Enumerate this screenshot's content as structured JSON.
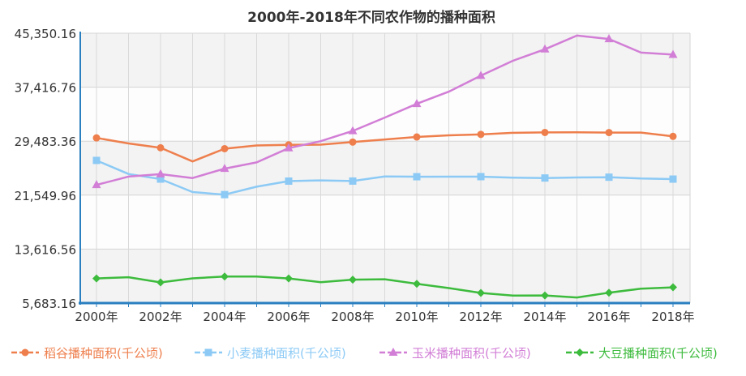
{
  "chart_data": {
    "type": "line",
    "title": "2000年-2018年不同农作物的播种面积",
    "x": [
      2000,
      2001,
      2002,
      2003,
      2004,
      2005,
      2006,
      2007,
      2008,
      2009,
      2010,
      2011,
      2012,
      2013,
      2014,
      2015,
      2016,
      2017,
      2018
    ],
    "x_tick_labels": [
      "2000年",
      "2002年",
      "2004年",
      "2006年",
      "2008年",
      "2010年",
      "2012年",
      "2014年",
      "2016年",
      "2018年"
    ],
    "y_tick_labels": [
      "5,683.16",
      "13,616.56",
      "21,549.96",
      "29,483.36",
      "37,416.76",
      "45,350.16"
    ],
    "ylim": [
      5683.16,
      45350.16
    ],
    "grid": true,
    "legend_position": "bottom",
    "series": [
      {
        "name": "稻谷播种面积(千公顷)",
        "color": "#ee7f4d",
        "marker": "circle",
        "values": [
          29962,
          29144,
          28509,
          26508,
          28379,
          28847,
          28938,
          28973,
          29350,
          29733,
          30097,
          30338,
          30476,
          30710,
          30765,
          30784,
          30746,
          30747,
          30189
        ]
      },
      {
        "name": "小麦播种面积(千公顷)",
        "color": "#8ccaf5",
        "marker": "square",
        "values": [
          26653,
          24664,
          23908,
          21997,
          21626,
          22793,
          23613,
          23721,
          23617,
          24291,
          24257,
          24270,
          24268,
          24117,
          24069,
          24141,
          24187,
          23988,
          23905
        ]
      },
      {
        "name": "玉米播种面积(千公顷)",
        "color": "#d27ed6",
        "marker": "triangle",
        "values": [
          23056,
          24282,
          24634,
          24068,
          25446,
          26358,
          28463,
          29478,
          30981,
          32948,
          34977,
          36767,
          39109,
          41299,
          42997,
          45000,
          44500,
          42500,
          42200
        ]
      },
      {
        "name": "大豆播种面积(千公顷)",
        "color": "#3dbb3d",
        "marker": "diamond",
        "values": [
          9307,
          9482,
          8720,
          9313,
          9589,
          9591,
          9304,
          8754,
          9127,
          9190,
          8516,
          7889,
          7172,
          6791,
          6800,
          6506,
          7202,
          7800,
          8000
        ]
      }
    ]
  }
}
